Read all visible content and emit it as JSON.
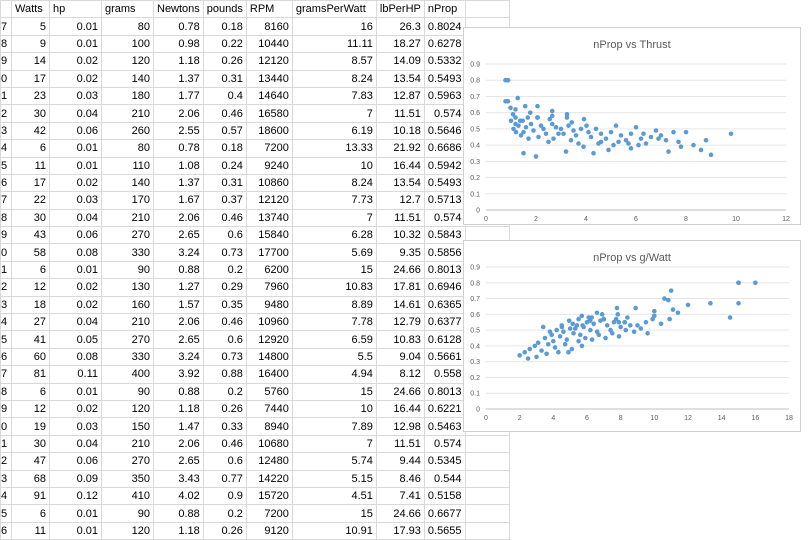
{
  "sheet": {
    "headers": [
      "Watts",
      "hp",
      "grams",
      "Newtons",
      "pounds",
      "RPM",
      "gramsPerWatt",
      "lbPerHP",
      "nProp"
    ],
    "rows": [
      [
        "7",
        "5",
        "0.01",
        "80",
        "0.78",
        "0.18",
        "8160",
        "16",
        "26.3",
        "0.8024"
      ],
      [
        "8",
        "9",
        "0.01",
        "100",
        "0.98",
        "0.22",
        "10440",
        "11.11",
        "18.27",
        "0.6278"
      ],
      [
        "9",
        "14",
        "0.02",
        "120",
        "1.18",
        "0.26",
        "12120",
        "8.57",
        "14.09",
        "0.5332"
      ],
      [
        "0",
        "17",
        "0.02",
        "140",
        "1.37",
        "0.31",
        "13440",
        "8.24",
        "13.54",
        "0.5493"
      ],
      [
        "1",
        "23",
        "0.03",
        "180",
        "1.77",
        "0.4",
        "14640",
        "7.83",
        "12.87",
        "0.5963"
      ],
      [
        "2",
        "30",
        "0.04",
        "210",
        "2.06",
        "0.46",
        "16580",
        "7",
        "11.51",
        "0.574"
      ],
      [
        "3",
        "42",
        "0.06",
        "260",
        "2.55",
        "0.57",
        "18600",
        "6.19",
        "10.18",
        "0.5646"
      ],
      [
        "4",
        "6",
        "0.01",
        "80",
        "0.78",
        "0.18",
        "7200",
        "13.33",
        "21.92",
        "0.6686"
      ],
      [
        "5",
        "11",
        "0.01",
        "110",
        "1.08",
        "0.24",
        "9240",
        "10",
        "16.44",
        "0.5942"
      ],
      [
        "6",
        "17",
        "0.02",
        "140",
        "1.37",
        "0.31",
        "10860",
        "8.24",
        "13.54",
        "0.5493"
      ],
      [
        "7",
        "22",
        "0.03",
        "170",
        "1.67",
        "0.37",
        "12120",
        "7.73",
        "12.7",
        "0.5713"
      ],
      [
        "8",
        "30",
        "0.04",
        "210",
        "2.06",
        "0.46",
        "13740",
        "7",
        "11.51",
        "0.574"
      ],
      [
        "9",
        "43",
        "0.06",
        "270",
        "2.65",
        "0.6",
        "15840",
        "6.28",
        "10.32",
        "0.5843"
      ],
      [
        "0",
        "58",
        "0.08",
        "330",
        "3.24",
        "0.73",
        "17700",
        "5.69",
        "9.35",
        "0.5856"
      ],
      [
        "1",
        "6",
        "0.01",
        "90",
        "0.88",
        "0.2",
        "6200",
        "15",
        "24.66",
        "0.8013"
      ],
      [
        "2",
        "12",
        "0.02",
        "130",
        "1.27",
        "0.29",
        "7960",
        "10.83",
        "17.81",
        "0.6946"
      ],
      [
        "3",
        "18",
        "0.02",
        "160",
        "1.57",
        "0.35",
        "9480",
        "8.89",
        "14.61",
        "0.6365"
      ],
      [
        "4",
        "27",
        "0.04",
        "210",
        "2.06",
        "0.46",
        "10960",
        "7.78",
        "12.79",
        "0.6377"
      ],
      [
        "5",
        "41",
        "0.05",
        "270",
        "2.65",
        "0.6",
        "12920",
        "6.59",
        "10.83",
        "0.6128"
      ],
      [
        "6",
        "60",
        "0.08",
        "330",
        "3.24",
        "0.73",
        "14800",
        "5.5",
        "9.04",
        "0.5661"
      ],
      [
        "7",
        "81",
        "0.11",
        "400",
        "3.92",
        "0.88",
        "16400",
        "4.94",
        "8.12",
        "0.558"
      ],
      [
        "8",
        "6",
        "0.01",
        "90",
        "0.88",
        "0.2",
        "5760",
        "15",
        "24.66",
        "0.8013"
      ],
      [
        "9",
        "12",
        "0.02",
        "120",
        "1.18",
        "0.26",
        "7440",
        "10",
        "16.44",
        "0.6221"
      ],
      [
        "0",
        "19",
        "0.03",
        "150",
        "1.47",
        "0.33",
        "8940",
        "7.89",
        "12.98",
        "0.5463"
      ],
      [
        "1",
        "30",
        "0.04",
        "210",
        "2.06",
        "0.46",
        "10680",
        "7",
        "11.51",
        "0.574"
      ],
      [
        "2",
        "47",
        "0.06",
        "270",
        "2.65",
        "0.6",
        "12480",
        "5.74",
        "9.44",
        "0.5345"
      ],
      [
        "3",
        "68",
        "0.09",
        "350",
        "3.43",
        "0.77",
        "14220",
        "5.15",
        "8.46",
        "0.544"
      ],
      [
        "4",
        "91",
        "0.12",
        "410",
        "4.02",
        "0.9",
        "15720",
        "4.51",
        "7.41",
        "0.5158"
      ],
      [
        "5",
        "6",
        "0.01",
        "90",
        "0.88",
        "0.2",
        "7200",
        "15",
        "24.66",
        "0.6677"
      ],
      [
        "6",
        "11",
        "0.01",
        "120",
        "1.18",
        "0.26",
        "9120",
        "10.91",
        "17.93",
        "0.5655"
      ]
    ]
  },
  "charts": [
    {
      "type": "scatter",
      "title": "nProp vs Thrust",
      "xlim": [
        0,
        12
      ],
      "ylim": [
        0,
        0.9
      ],
      "xticks": [
        0,
        2,
        4,
        6,
        8,
        10,
        12
      ],
      "yticks": [
        0,
        0.1,
        0.2,
        0.3,
        0.4,
        0.5,
        0.6,
        0.7,
        0.8,
        0.9
      ],
      "color": "#5b9bd5",
      "points": [
        [
          0.78,
          0.8
        ],
        [
          0.98,
          0.63
        ],
        [
          1.18,
          0.53
        ],
        [
          1.37,
          0.55
        ],
        [
          1.77,
          0.6
        ],
        [
          2.06,
          0.57
        ],
        [
          2.55,
          0.56
        ],
        [
          0.78,
          0.67
        ],
        [
          1.08,
          0.59
        ],
        [
          1.37,
          0.55
        ],
        [
          1.67,
          0.57
        ],
        [
          2.06,
          0.57
        ],
        [
          2.65,
          0.58
        ],
        [
          3.24,
          0.59
        ],
        [
          0.88,
          0.8
        ],
        [
          1.27,
          0.69
        ],
        [
          1.57,
          0.64
        ],
        [
          2.06,
          0.64
        ],
        [
          2.65,
          0.61
        ],
        [
          3.24,
          0.57
        ],
        [
          3.92,
          0.56
        ],
        [
          0.88,
          0.8
        ],
        [
          1.18,
          0.62
        ],
        [
          1.47,
          0.55
        ],
        [
          2.06,
          0.57
        ],
        [
          2.65,
          0.53
        ],
        [
          3.43,
          0.54
        ],
        [
          4.02,
          0.52
        ],
        [
          0.88,
          0.67
        ],
        [
          1.18,
          0.57
        ],
        [
          1.0,
          0.55
        ],
        [
          1.1,
          0.5
        ],
        [
          1.3,
          0.52
        ],
        [
          1.5,
          0.48
        ],
        [
          1.6,
          0.51
        ],
        [
          1.8,
          0.53
        ],
        [
          1.9,
          0.49
        ],
        [
          2.2,
          0.52
        ],
        [
          2.3,
          0.5
        ],
        [
          2.4,
          0.47
        ],
        [
          2.8,
          0.51
        ],
        [
          3.0,
          0.5
        ],
        [
          3.1,
          0.47
        ],
        [
          3.3,
          0.52
        ],
        [
          3.5,
          0.49
        ],
        [
          3.6,
          0.46
        ],
        [
          3.8,
          0.5
        ],
        [
          4.1,
          0.48
        ],
        [
          4.2,
          0.45
        ],
        [
          4.4,
          0.5
        ],
        [
          4.6,
          0.47
        ],
        [
          4.8,
          0.44
        ],
        [
          5.0,
          0.48
        ],
        [
          5.2,
          0.52
        ],
        [
          5.4,
          0.46
        ],
        [
          5.6,
          0.43
        ],
        [
          5.8,
          0.47
        ],
        [
          6.0,
          0.51
        ],
        [
          6.2,
          0.44
        ],
        [
          6.4,
          0.41
        ],
        [
          6.6,
          0.45
        ],
        [
          6.8,
          0.49
        ],
        [
          7.0,
          0.46
        ],
        [
          7.2,
          0.43
        ],
        [
          7.5,
          0.48
        ],
        [
          7.7,
          0.42
        ],
        [
          8.0,
          0.48
        ],
        [
          8.3,
          0.4
        ],
        [
          8.6,
          0.37
        ],
        [
          9.0,
          0.34
        ],
        [
          9.8,
          0.47
        ],
        [
          1.5,
          0.35
        ],
        [
          2.0,
          0.33
        ],
        [
          3.2,
          0.36
        ],
        [
          4.3,
          0.35
        ],
        [
          4.6,
          0.42
        ],
        [
          5.8,
          0.38
        ],
        [
          6.1,
          0.4
        ],
        [
          6.9,
          0.44
        ],
        [
          7.3,
          0.36
        ],
        [
          2.7,
          0.44
        ],
        [
          3.7,
          0.41
        ],
        [
          5.1,
          0.4
        ],
        [
          1.2,
          0.48
        ],
        [
          1.4,
          0.46
        ],
        [
          1.7,
          0.44
        ],
        [
          2.1,
          0.45
        ],
        [
          2.5,
          0.42
        ],
        [
          2.9,
          0.47
        ],
        [
          3.4,
          0.43
        ],
        [
          3.9,
          0.39
        ],
        [
          4.5,
          0.41
        ],
        [
          4.9,
          0.37
        ],
        [
          5.3,
          0.42
        ],
        [
          5.7,
          0.41
        ],
        [
          6.3,
          0.47
        ],
        [
          7.8,
          0.39
        ],
        [
          8.8,
          0.43
        ]
      ]
    },
    {
      "type": "scatter",
      "title": "nProp vs g/Watt",
      "xlim": [
        0,
        18
      ],
      "ylim": [
        0,
        0.9
      ],
      "xticks": [
        0,
        2,
        4,
        6,
        8,
        10,
        12,
        14,
        16,
        18
      ],
      "yticks": [
        0,
        0.1,
        0.2,
        0.3,
        0.4,
        0.5,
        0.6,
        0.7,
        0.8,
        0.9
      ],
      "color": "#5b9bd5",
      "points": [
        [
          16,
          0.8
        ],
        [
          11.11,
          0.63
        ],
        [
          8.57,
          0.53
        ],
        [
          8.24,
          0.55
        ],
        [
          7.83,
          0.6
        ],
        [
          7,
          0.57
        ],
        [
          6.19,
          0.56
        ],
        [
          13.33,
          0.67
        ],
        [
          10,
          0.59
        ],
        [
          8.24,
          0.55
        ],
        [
          7.73,
          0.57
        ],
        [
          7,
          0.57
        ],
        [
          6.28,
          0.58
        ],
        [
          5.69,
          0.59
        ],
        [
          15,
          0.8
        ],
        [
          10.83,
          0.69
        ],
        [
          8.89,
          0.64
        ],
        [
          7.78,
          0.64
        ],
        [
          6.59,
          0.61
        ],
        [
          5.5,
          0.57
        ],
        [
          4.94,
          0.56
        ],
        [
          15,
          0.8
        ],
        [
          10,
          0.62
        ],
        [
          7.89,
          0.55
        ],
        [
          7,
          0.57
        ],
        [
          5.74,
          0.53
        ],
        [
          5.15,
          0.54
        ],
        [
          4.51,
          0.52
        ],
        [
          15,
          0.67
        ],
        [
          10.91,
          0.57
        ],
        [
          14.5,
          0.58
        ],
        [
          11.0,
          0.75
        ],
        [
          12.0,
          0.66
        ],
        [
          9.5,
          0.55
        ],
        [
          9.0,
          0.53
        ],
        [
          2.0,
          0.34
        ],
        [
          2.3,
          0.36
        ],
        [
          2.6,
          0.38
        ],
        [
          2.9,
          0.4
        ],
        [
          3.1,
          0.42
        ],
        [
          3.3,
          0.37
        ],
        [
          3.5,
          0.45
        ],
        [
          3.7,
          0.41
        ],
        [
          3.9,
          0.47
        ],
        [
          4.0,
          0.43
        ],
        [
          4.2,
          0.5
        ],
        [
          4.4,
          0.46
        ],
        [
          4.6,
          0.49
        ],
        [
          4.8,
          0.44
        ],
        [
          5.0,
          0.51
        ],
        [
          5.2,
          0.48
        ],
        [
          5.4,
          0.53
        ],
        [
          5.6,
          0.47
        ],
        [
          5.8,
          0.52
        ],
        [
          6.0,
          0.55
        ],
        [
          6.2,
          0.5
        ],
        [
          6.4,
          0.54
        ],
        [
          6.6,
          0.49
        ],
        [
          6.8,
          0.56
        ],
        [
          7.2,
          0.53
        ],
        [
          7.4,
          0.5
        ],
        [
          7.6,
          0.55
        ],
        [
          8.0,
          0.52
        ],
        [
          8.4,
          0.58
        ],
        [
          8.8,
          0.49
        ],
        [
          9.2,
          0.51
        ],
        [
          9.6,
          0.48
        ],
        [
          10.4,
          0.54
        ],
        [
          11.4,
          0.61
        ],
        [
          3.0,
          0.33
        ],
        [
          3.6,
          0.35
        ],
        [
          4.1,
          0.39
        ],
        [
          4.3,
          0.36
        ],
        [
          4.7,
          0.41
        ],
        [
          5.1,
          0.38
        ],
        [
          5.5,
          0.43
        ],
        [
          5.9,
          0.45
        ],
        [
          6.3,
          0.44
        ],
        [
          6.7,
          0.47
        ],
        [
          7.1,
          0.45
        ],
        [
          7.5,
          0.48
        ],
        [
          7.9,
          0.46
        ],
        [
          8.3,
          0.5
        ],
        [
          2.5,
          0.32
        ],
        [
          3.4,
          0.52
        ],
        [
          3.8,
          0.49
        ],
        [
          4.5,
          0.53
        ],
        [
          5.3,
          0.51
        ],
        [
          6.1,
          0.58
        ],
        [
          6.9,
          0.6
        ],
        [
          9.9,
          0.57
        ],
        [
          10.6,
          0.7
        ],
        [
          4.9,
          0.36
        ],
        [
          5.7,
          0.4
        ]
      ]
    }
  ]
}
